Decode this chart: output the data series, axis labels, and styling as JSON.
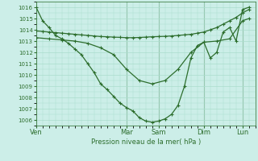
{
  "background_color": "#cceee8",
  "grid_color": "#aaddcc",
  "line_color": "#2d6e2d",
  "ylim": [
    1005.5,
    1016.5
  ],
  "yticks": [
    1006,
    1007,
    1008,
    1009,
    1010,
    1011,
    1012,
    1013,
    1014,
    1015,
    1016
  ],
  "xlabel": "Pression niveau de la mer( hPa )",
  "day_labels": [
    "Ven",
    "Mar",
    "Sam",
    "Dim",
    "Lun"
  ],
  "day_positions": [
    0,
    14,
    19,
    26,
    32
  ],
  "xlim": [
    0,
    34
  ],
  "series1_x": [
    0,
    1,
    2,
    3,
    4,
    5,
    6,
    7,
    8,
    9,
    10,
    11,
    12,
    13,
    14,
    15,
    16,
    17,
    18,
    19,
    20,
    21,
    22,
    23,
    24,
    25,
    26,
    27,
    28,
    29,
    30,
    31,
    32,
    33
  ],
  "series1_y": [
    1016.0,
    1014.8,
    1014.2,
    1013.5,
    1013.2,
    1012.8,
    1012.3,
    1011.8,
    1011.0,
    1010.2,
    1009.2,
    1008.7,
    1008.1,
    1007.5,
    1007.1,
    1006.8,
    1006.2,
    1005.9,
    1005.8,
    1005.9,
    1006.1,
    1006.5,
    1007.3,
    1009.0,
    1011.5,
    1012.6,
    1012.9,
    1011.5,
    1012.0,
    1013.8,
    1014.2,
    1013.0,
    1015.8,
    1016.0
  ],
  "series2_x": [
    0,
    1,
    2,
    3,
    4,
    5,
    6,
    7,
    8,
    9,
    10,
    11,
    12,
    13,
    14,
    15,
    16,
    17,
    18,
    19,
    20,
    21,
    22,
    23,
    24,
    25,
    26,
    27,
    28,
    29,
    30,
    31,
    32,
    33
  ],
  "series2_y": [
    1013.9,
    1013.85,
    1013.8,
    1013.75,
    1013.7,
    1013.65,
    1013.6,
    1013.55,
    1013.5,
    1013.45,
    1013.4,
    1013.38,
    1013.35,
    1013.33,
    1013.3,
    1013.3,
    1013.32,
    1013.35,
    1013.38,
    1013.4,
    1013.42,
    1013.45,
    1013.5,
    1013.55,
    1013.6,
    1013.7,
    1013.8,
    1014.0,
    1014.2,
    1014.5,
    1014.8,
    1015.1,
    1015.5,
    1015.8
  ],
  "series3_x": [
    0,
    2,
    4,
    6,
    8,
    10,
    12,
    14,
    16,
    18,
    20,
    22,
    24,
    26,
    28,
    30,
    32,
    33
  ],
  "series3_y": [
    1013.3,
    1013.2,
    1013.1,
    1013.0,
    1012.8,
    1012.4,
    1011.8,
    1010.5,
    1009.5,
    1009.2,
    1009.5,
    1010.5,
    1012.0,
    1012.9,
    1013.0,
    1013.2,
    1014.8,
    1015.0
  ]
}
